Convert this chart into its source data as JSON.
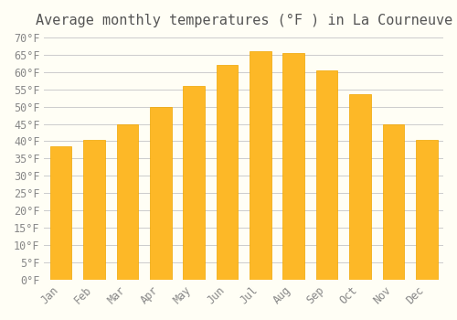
{
  "title": "Average monthly temperatures (°F ) in La Courneuve",
  "months": [
    "Jan",
    "Feb",
    "Mar",
    "Apr",
    "May",
    "Jun",
    "Jul",
    "Aug",
    "Sep",
    "Oct",
    "Nov",
    "Dec"
  ],
  "values": [
    38.5,
    40.5,
    45.0,
    50.0,
    56.0,
    62.0,
    66.0,
    65.5,
    60.5,
    53.5,
    45.0,
    40.5
  ],
  "bar_color": "#FDB827",
  "bar_edge_color": "#F0A500",
  "background_color": "#FFFEF5",
  "grid_color": "#CCCCCC",
  "title_fontsize": 11,
  "tick_fontsize": 8.5,
  "ylim": [
    0,
    70
  ],
  "ytick_step": 5
}
